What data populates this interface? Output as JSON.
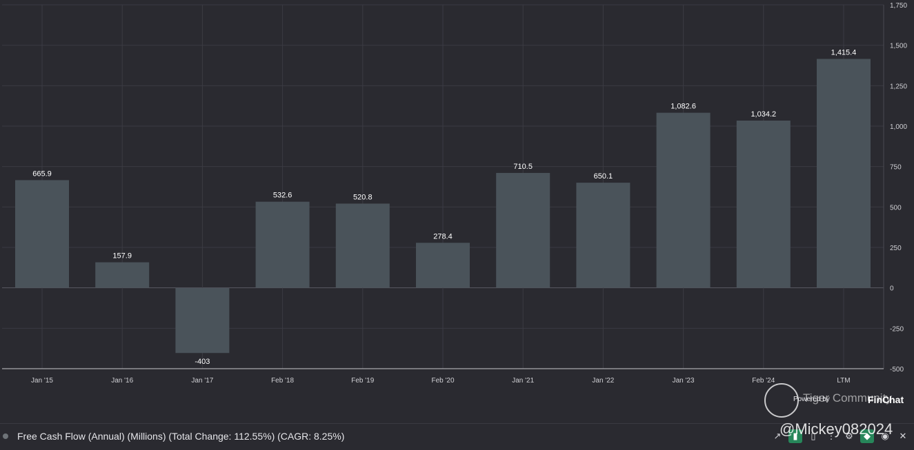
{
  "chart_data": {
    "type": "bar",
    "title": "Free Cash Flow (Annual) (Millions) (Total Change: 112.55%) (CAGR: 8.25%)",
    "categories": [
      "Jan '15",
      "Jan '16",
      "Jan '17",
      "Feb '18",
      "Feb '19",
      "Feb '20",
      "Jan '21",
      "Jan '22",
      "Jan '23",
      "Feb '24",
      "LTM"
    ],
    "values": [
      665.9,
      157.9,
      -403,
      532.6,
      520.8,
      278.4,
      710.5,
      650.1,
      1082.6,
      1034.2,
      1415.4
    ],
    "value_labels": [
      "665.9",
      "157.9",
      "-403",
      "532.6",
      "520.8",
      "278.4",
      "710.5",
      "650.1",
      "1,082.6",
      "1,034.2",
      "1,415.4"
    ],
    "ylim": [
      -500,
      1750
    ],
    "yticks": [
      -500,
      -250,
      0,
      250,
      500,
      750,
      1000,
      1250,
      1500,
      1750
    ],
    "ytick_labels": [
      "-500",
      "-250",
      "0",
      "250",
      "500",
      "750",
      "1,000",
      "1,250",
      "1,500",
      "1,750"
    ],
    "y_axis_side": "right",
    "grid": true,
    "bar_color": "#4a535a",
    "background": "#2a2a30"
  },
  "legend": {
    "text": "Free Cash Flow (Annual) (Millions) (Total Change: 112.55%) (CAGR: 8.25%)"
  },
  "toolbar": {
    "icons": [
      "line-chart-icon",
      "bar-chart-icon",
      "stacked-bar-icon",
      "more-icon",
      "gear-icon",
      "tag-icon",
      "eye-icon",
      "close-icon"
    ]
  },
  "watermark": {
    "brand": "Tiger Community",
    "powered_by": "Powered by",
    "finchat": "FinChat",
    "user": "@Mickey082024"
  }
}
